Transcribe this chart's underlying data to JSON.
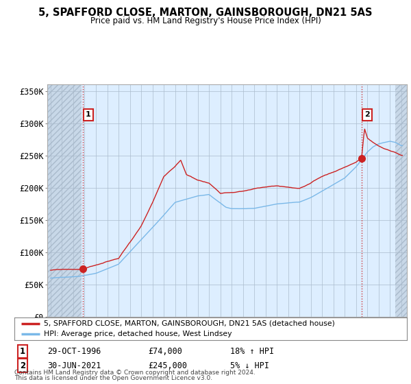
{
  "title1": "5, SPAFFORD CLOSE, MARTON, GAINSBOROUGH, DN21 5AS",
  "title2": "Price paid vs. HM Land Registry's House Price Index (HPI)",
  "ylabel_ticks": [
    "£0",
    "£50K",
    "£100K",
    "£150K",
    "£200K",
    "£250K",
    "£300K",
    "£350K"
  ],
  "ytick_vals": [
    0,
    50000,
    100000,
    150000,
    200000,
    250000,
    300000,
    350000
  ],
  "ylim": [
    0,
    360000
  ],
  "xlim_start": 1993.7,
  "xlim_end": 2025.5,
  "sale1_x": 1996.83,
  "sale1_y": 74000,
  "sale1_label": "1",
  "sale1_date": "29-OCT-1996",
  "sale1_price": "£74,000",
  "sale1_hpi": "18% ↑ HPI",
  "sale2_x": 2021.5,
  "sale2_y": 245000,
  "sale2_label": "2",
  "sale2_date": "30-JUN-2021",
  "sale2_price": "£245,000",
  "sale2_hpi": "5% ↓ HPI",
  "legend_line1": "5, SPAFFORD CLOSE, MARTON, GAINSBOROUGH, DN21 5AS (detached house)",
  "legend_line2": "HPI: Average price, detached house, West Lindsey",
  "footnote1": "Contains HM Land Registry data © Crown copyright and database right 2024.",
  "footnote2": "This data is licensed under the Open Government Licence v3.0.",
  "hpi_color": "#7ab8e8",
  "price_color": "#cc2222",
  "vline_color": "#cc2222",
  "plot_bg": "#ddeeff",
  "outer_bg": "#ffffff",
  "hatch_color": "#c8d8e8"
}
